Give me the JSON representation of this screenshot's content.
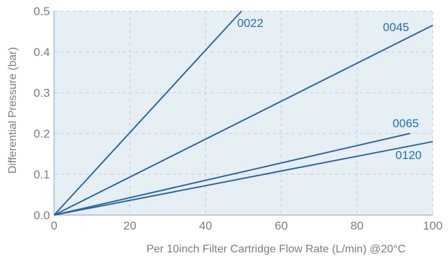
{
  "chart_data": {
    "type": "line",
    "title": "",
    "xlabel": "Per 10inch Filter Cartridge Flow Rate (L/min) @20°C",
    "ylabel": "Differential Pressure (bar)",
    "xlim": [
      0,
      100
    ],
    "ylim": [
      0,
      0.5
    ],
    "xticks": [
      "0",
      "20",
      "40",
      "60",
      "80",
      "100"
    ],
    "yticks": [
      "0.0",
      "0.1",
      "0.2",
      "0.3",
      "0.4",
      "0.5"
    ],
    "grid": true,
    "series": [
      {
        "name": "0022",
        "x": [
          0,
          49.5
        ],
        "y": [
          0,
          0.5
        ]
      },
      {
        "name": "0045",
        "x": [
          0,
          100
        ],
        "y": [
          0,
          0.465
        ]
      },
      {
        "name": "0065",
        "x": [
          0,
          94
        ],
        "y": [
          0,
          0.2
        ]
      },
      {
        "name": "0120",
        "x": [
          0,
          100
        ],
        "y": [
          0,
          0.18
        ]
      }
    ]
  },
  "colors": {
    "plot_background": "#e6eff4",
    "series_line": "#2a64a8",
    "series_label": "#1f6fb8",
    "grid": "#c4cde0",
    "text": "#7a7d80"
  }
}
